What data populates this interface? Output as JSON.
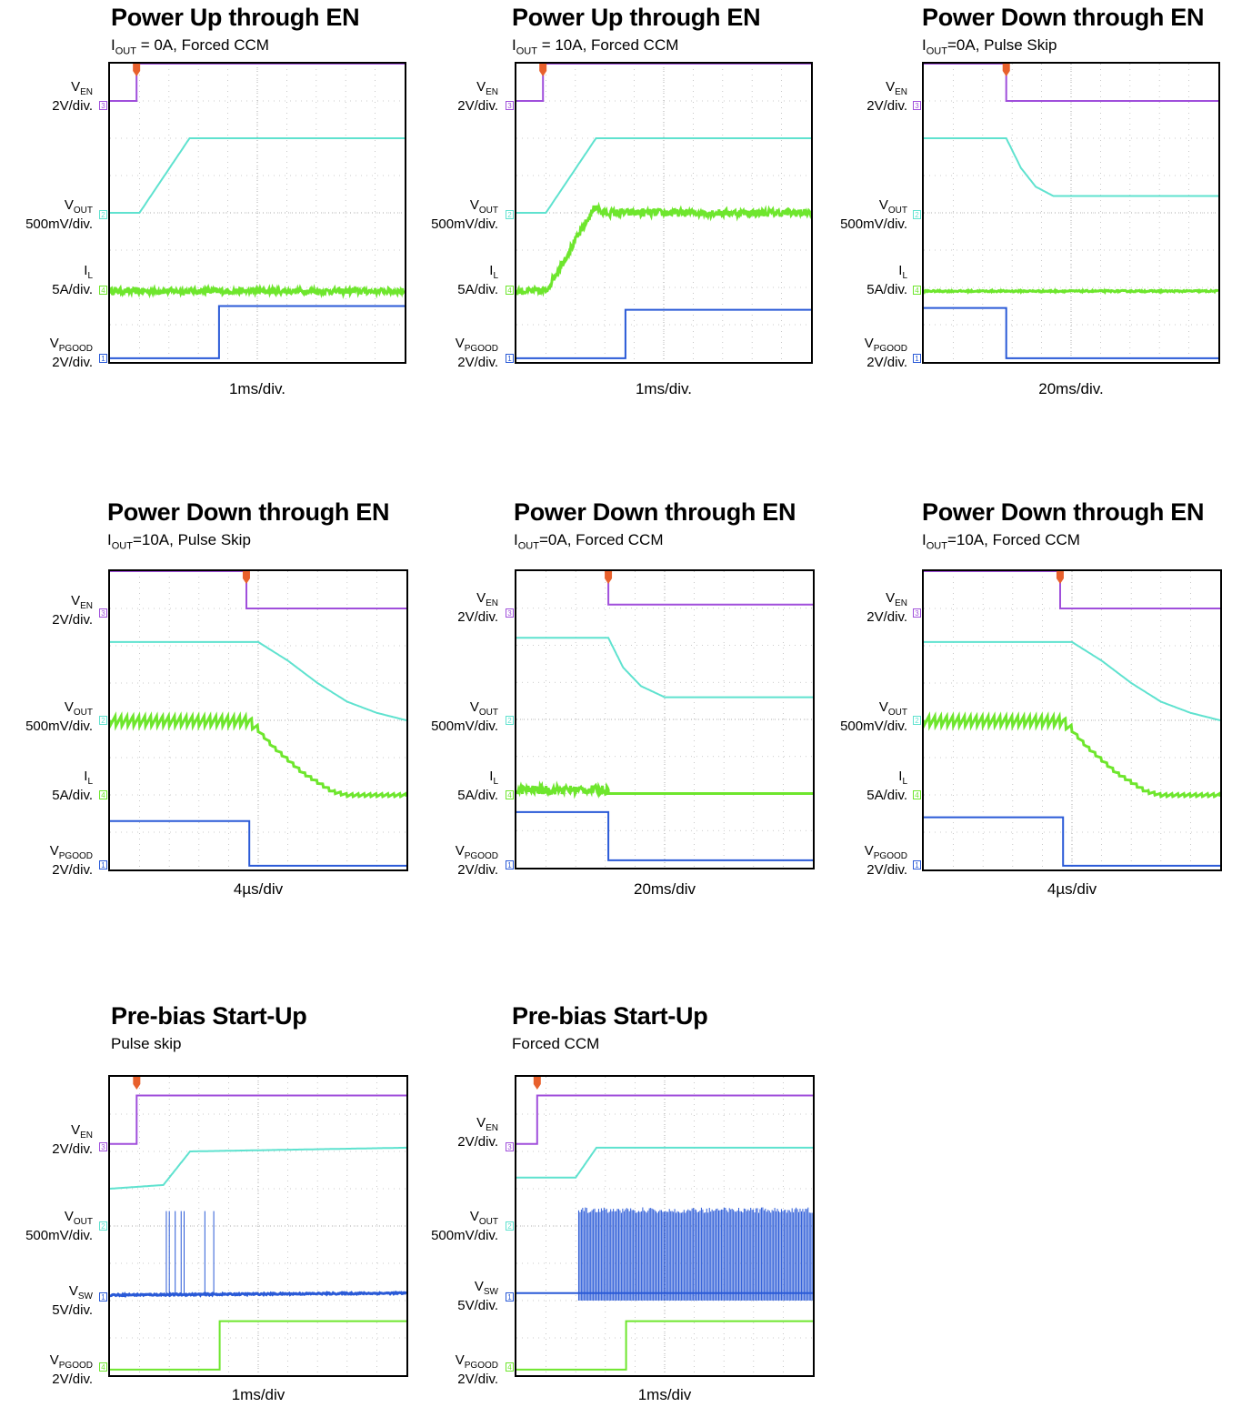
{
  "colors": {
    "ven": "#a04fdb",
    "vout": "#5fe2cf",
    "il": "#6ee62d",
    "pgood": "#2a5ad7",
    "vsw": "#2a5ad7",
    "trigger": "#e8602c"
  },
  "chart_data": [
    {
      "type": "line",
      "title": "Power Up through EN",
      "subtitle_main": "I",
      "subtitle_sub": "OUT",
      "subtitle_rest": " = 0A, Forced CCM",
      "timebase": "1ms/div.",
      "channels": [
        {
          "name": "VEN",
          "main": "V",
          "sub": "EN",
          "scale": "2V/div.",
          "marker": "3",
          "color": "ven",
          "values": [
            [
              0,
              7
            ],
            [
              0.9,
              7
            ],
            [
              0.9,
              8
            ],
            [
              10,
              8
            ]
          ]
        },
        {
          "name": "VOUT",
          "main": "V",
          "sub": "OUT",
          "scale": "500mV/div.",
          "marker": "2",
          "color": "vout",
          "values": [
            [
              0,
              4
            ],
            [
              1,
              4
            ],
            [
              2.7,
              6
            ],
            [
              10,
              6
            ]
          ]
        },
        {
          "name": "IL",
          "main": "I",
          "sub": "L",
          "scale": "5A/div.",
          "marker": "4",
          "color": "il",
          "values": [
            [
              0,
              1.9
            ],
            [
              10,
              1.9
            ]
          ],
          "noise": 0.08
        },
        {
          "name": "VPGOOD",
          "main": "V",
          "sub": "PGOOD",
          "scale": "2V/div.",
          "marker": "1",
          "color": "pgood",
          "values": [
            [
              0,
              0.1
            ],
            [
              3.7,
              0.1
            ],
            [
              3.7,
              1.5
            ],
            [
              10,
              1.5
            ]
          ]
        }
      ]
    },
    {
      "type": "line",
      "title": "Power Up through EN",
      "subtitle_main": "I",
      "subtitle_sub": "OUT",
      "subtitle_rest": " = 10A, Forced CCM",
      "timebase": "1ms/div.",
      "channels": [
        {
          "name": "VEN",
          "main": "V",
          "sub": "EN",
          "scale": "2V/div.",
          "marker": "3",
          "color": "ven",
          "values": [
            [
              0,
              7
            ],
            [
              0.9,
              7
            ],
            [
              0.9,
              8
            ],
            [
              10,
              8
            ]
          ]
        },
        {
          "name": "VOUT",
          "main": "V",
          "sub": "OUT",
          "scale": "500mV/div.",
          "marker": "2",
          "color": "vout",
          "values": [
            [
              0,
              4
            ],
            [
              1,
              4
            ],
            [
              2.7,
              6
            ],
            [
              10,
              6
            ]
          ]
        },
        {
          "name": "IL",
          "main": "I",
          "sub": "L",
          "scale": "5A/div.",
          "marker": "4",
          "color": "il",
          "values": [
            [
              0,
              1.9
            ],
            [
              1,
              1.9
            ],
            [
              2.7,
              4.2
            ],
            [
              2.9,
              4
            ],
            [
              10,
              4
            ]
          ],
          "noise": 0.1
        },
        {
          "name": "VPGOOD",
          "main": "V",
          "sub": "PGOOD",
          "scale": "2V/div.",
          "marker": "1",
          "color": "pgood",
          "values": [
            [
              0,
              0.1
            ],
            [
              3.7,
              0.1
            ],
            [
              3.7,
              1.4
            ],
            [
              10,
              1.4
            ]
          ]
        }
      ]
    },
    {
      "type": "line",
      "title": "Power Down through EN",
      "subtitle_main": "I",
      "subtitle_sub": "OUT",
      "subtitle_rest": "=0A, Pulse Skip",
      "timebase": "20ms/div.",
      "channels": [
        {
          "name": "VEN",
          "main": "V",
          "sub": "EN",
          "scale": "2V/div.",
          "marker": "3",
          "color": "ven",
          "values": [
            [
              0,
              8
            ],
            [
              2.8,
              8
            ],
            [
              2.8,
              7
            ],
            [
              10,
              7
            ]
          ]
        },
        {
          "name": "VOUT",
          "main": "V",
          "sub": "OUT",
          "scale": "500mV/div.",
          "marker": "2",
          "color": "vout",
          "values": [
            [
              0,
              6
            ],
            [
              2.8,
              6
            ],
            [
              3.3,
              5.2
            ],
            [
              3.8,
              4.7
            ],
            [
              4.4,
              4.45
            ],
            [
              10,
              4.45
            ]
          ]
        },
        {
          "name": "IL",
          "main": "I",
          "sub": "L",
          "scale": "5A/div.",
          "marker": "4",
          "color": "il",
          "values": [
            [
              0,
              1.9
            ],
            [
              10,
              1.9
            ]
          ],
          "noise": 0.02
        },
        {
          "name": "VPGOOD",
          "main": "V",
          "sub": "PGOOD",
          "scale": "2V/div.",
          "marker": "1",
          "color": "pgood",
          "values": [
            [
              0,
              1.45
            ],
            [
              2.8,
              1.45
            ],
            [
              2.8,
              0.1
            ],
            [
              10,
              0.1
            ]
          ]
        }
      ]
    },
    {
      "type": "line",
      "title": "Power Down through EN",
      "subtitle_main": "I",
      "subtitle_sub": "OUT",
      "subtitle_rest": "=10A, Pulse Skip",
      "timebase": "4µs/div",
      "channels": [
        {
          "name": "VEN",
          "main": "V",
          "sub": "EN",
          "scale": "2V/div.",
          "marker": "3",
          "color": "ven",
          "values": [
            [
              0,
              8
            ],
            [
              4.6,
              8
            ],
            [
              4.6,
              7
            ],
            [
              10,
              7
            ]
          ]
        },
        {
          "name": "VOUT",
          "main": "V",
          "sub": "OUT",
          "scale": "500mV/div.",
          "marker": "2",
          "color": "vout",
          "values": [
            [
              0,
              6.1
            ],
            [
              5,
              6.1
            ],
            [
              6,
              5.6
            ],
            [
              7,
              5
            ],
            [
              8,
              4.5
            ],
            [
              9,
              4.2
            ],
            [
              10,
              4
            ]
          ]
        },
        {
          "name": "IL",
          "main": "I",
          "sub": "L",
          "scale": "5A/div.",
          "marker": "4",
          "color": "il",
          "values": [
            [
              0,
              4
            ],
            [
              4.7,
              4
            ],
            [
              5.5,
              3.3
            ],
            [
              6.5,
              2.6
            ],
            [
              7.5,
              2.1
            ],
            [
              8,
              2
            ],
            [
              10,
              2
            ]
          ],
          "ripple": 0.15
        },
        {
          "name": "VPGOOD",
          "main": "V",
          "sub": "PGOOD",
          "scale": "2V/div.",
          "marker": "1",
          "color": "pgood",
          "values": [
            [
              0,
              1.3
            ],
            [
              4.7,
              1.3
            ],
            [
              4.7,
              0.1
            ],
            [
              10,
              0.1
            ]
          ]
        }
      ]
    },
    {
      "type": "line",
      "title": "Power Down through EN",
      "subtitle_main": "I",
      "subtitle_sub": "OUT",
      "subtitle_rest": "=0A, Forced CCM",
      "timebase": "20ms/div",
      "channels": [
        {
          "name": "VEN",
          "main": "V",
          "sub": "EN",
          "scale": "2V/div.",
          "marker": "3",
          "color": "ven",
          "values": [
            [
              0,
              8.1
            ],
            [
              3.1,
              8.1
            ],
            [
              3.1,
              7.1
            ],
            [
              10,
              7.1
            ]
          ]
        },
        {
          "name": "VOUT",
          "main": "V",
          "sub": "OUT",
          "scale": "500mV/div.",
          "marker": "2",
          "color": "vout",
          "values": [
            [
              0,
              6.2
            ],
            [
              3.1,
              6.2
            ],
            [
              3.6,
              5.4
            ],
            [
              4.2,
              4.9
            ],
            [
              5,
              4.6
            ],
            [
              10,
              4.6
            ]
          ]
        },
        {
          "name": "IL",
          "main": "I",
          "sub": "L",
          "scale": "5A/div.",
          "marker": "4",
          "color": "il",
          "values": [
            [
              0,
              2.1
            ],
            [
              3.1,
              2.1
            ],
            [
              3.1,
              2
            ],
            [
              10,
              2
            ]
          ],
          "noise": 0.12,
          "noise_end": 3.1
        },
        {
          "name": "VPGOOD",
          "main": "V",
          "sub": "PGOOD",
          "scale": "2V/div.",
          "marker": "1",
          "color": "pgood",
          "values": [
            [
              0,
              1.5
            ],
            [
              3.1,
              1.5
            ],
            [
              3.1,
              0.2
            ],
            [
              10,
              0.2
            ]
          ]
        }
      ]
    },
    {
      "type": "line",
      "title": "Power Down through EN",
      "subtitle_main": "I",
      "subtitle_sub": "OUT",
      "subtitle_rest": "=10A, Forced CCM",
      "timebase": "4µs/div",
      "channels": [
        {
          "name": "VEN",
          "main": "V",
          "sub": "EN",
          "scale": "2V/div.",
          "marker": "3",
          "color": "ven",
          "values": [
            [
              0,
              8
            ],
            [
              4.6,
              8
            ],
            [
              4.6,
              7
            ],
            [
              10,
              7
            ]
          ]
        },
        {
          "name": "VOUT",
          "main": "V",
          "sub": "OUT",
          "scale": "500mV/div.",
          "marker": "2",
          "color": "vout",
          "values": [
            [
              0,
              6.1
            ],
            [
              5,
              6.1
            ],
            [
              6,
              5.6
            ],
            [
              7,
              5
            ],
            [
              8,
              4.5
            ],
            [
              9,
              4.2
            ],
            [
              10,
              4
            ]
          ]
        },
        {
          "name": "IL",
          "main": "I",
          "sub": "L",
          "scale": "5A/div.",
          "marker": "4",
          "color": "il",
          "values": [
            [
              0,
              4
            ],
            [
              4.7,
              4
            ],
            [
              5.5,
              3.3
            ],
            [
              6.5,
              2.6
            ],
            [
              7.5,
              2.1
            ],
            [
              8,
              2
            ],
            [
              10,
              2
            ]
          ],
          "ripple": 0.15
        },
        {
          "name": "VPGOOD",
          "main": "V",
          "sub": "PGOOD",
          "scale": "2V/div.",
          "marker": "1",
          "color": "pgood",
          "values": [
            [
              0,
              1.4
            ],
            [
              4.7,
              1.4
            ],
            [
              4.7,
              0.1
            ],
            [
              10,
              0.1
            ]
          ]
        }
      ]
    },
    {
      "type": "line",
      "title": "Pre-bias Start-Up",
      "subtitle_main": "Pulse skip",
      "subtitle_sub": "",
      "subtitle_rest": "",
      "timebase": "1ms/div",
      "channels": [
        {
          "name": "VEN",
          "main": "V",
          "sub": "EN",
          "scale": "2V/div.",
          "marker": "3",
          "color": "ven",
          "values": [
            [
              0,
              6.2
            ],
            [
              0.9,
              6.2
            ],
            [
              0.9,
              7.5
            ],
            [
              10,
              7.5
            ]
          ]
        },
        {
          "name": "VOUT",
          "main": "V",
          "sub": "OUT",
          "scale": "500mV/div.",
          "marker": "2",
          "color": "vout",
          "values": [
            [
              0,
              5
            ],
            [
              1.8,
              5.1
            ],
            [
              2.7,
              6
            ],
            [
              10,
              6.1
            ]
          ]
        },
        {
          "name": "VSW",
          "main": "V",
          "sub": "SW",
          "scale": "5V/div.",
          "marker": "1",
          "color": "vsw",
          "values": [
            [
              0,
              2.15
            ],
            [
              10,
              2.2
            ]
          ],
          "noise": 0.02,
          "spikes": [
            1.9,
            2.0,
            2.2,
            2.4,
            2.5,
            3.2,
            3.5
          ],
          "spike_top": 4.4
        },
        {
          "name": "VPGOOD",
          "main": "V",
          "sub": "PGOOD",
          "scale": "2V/div.",
          "marker": "4",
          "color": "il",
          "values": [
            [
              0,
              0.15
            ],
            [
              3.7,
              0.15
            ],
            [
              3.7,
              1.45
            ],
            [
              10,
              1.45
            ]
          ]
        }
      ]
    },
    {
      "type": "line",
      "title": "Pre-bias Start-Up",
      "subtitle_main": "Forced CCM",
      "subtitle_sub": "",
      "subtitle_rest": "",
      "timebase": "1ms/div",
      "channels": [
        {
          "name": "VEN",
          "main": "V",
          "sub": "EN",
          "scale": "2V/div.",
          "marker": "3",
          "color": "ven",
          "values": [
            [
              0,
              6.2
            ],
            [
              0.7,
              6.2
            ],
            [
              0.7,
              7.5
            ],
            [
              10,
              7.5
            ]
          ]
        },
        {
          "name": "VOUT",
          "main": "V",
          "sub": "OUT",
          "scale": "500mV/div.",
          "marker": "2",
          "color": "vout",
          "values": [
            [
              0,
              5.3
            ],
            [
              2,
              5.3
            ],
            [
              2.7,
              6.1
            ],
            [
              10,
              6.1
            ]
          ]
        },
        {
          "name": "VSW",
          "main": "V",
          "sub": "SW",
          "scale": "5V/div.",
          "marker": "1",
          "color": "vsw",
          "values": [
            [
              0,
              2.2
            ],
            [
              2.1,
              2.2
            ],
            [
              10,
              2.2
            ]
          ],
          "switching": [
            2.1,
            10
          ],
          "switching_top": 4.5,
          "switching_bottom": 2.0
        },
        {
          "name": "VPGOOD",
          "main": "V",
          "sub": "PGOOD",
          "scale": "2V/div.",
          "marker": "4",
          "color": "il",
          "values": [
            [
              0,
              0.15
            ],
            [
              3.7,
              0.15
            ],
            [
              3.7,
              1.45
            ],
            [
              10,
              1.45
            ]
          ]
        }
      ]
    }
  ]
}
